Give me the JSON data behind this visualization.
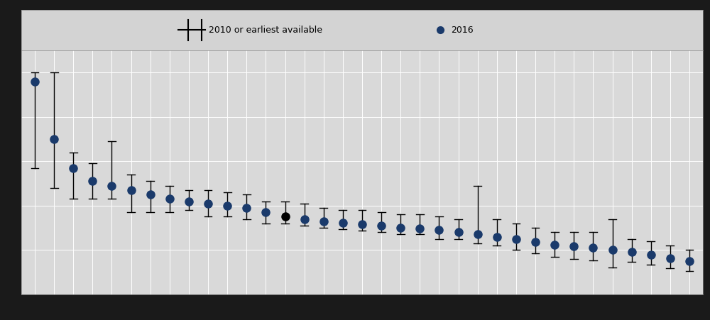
{
  "dot_2016": [
    0.48,
    0.35,
    0.285,
    0.255,
    0.245,
    0.235,
    0.225,
    0.215,
    0.21,
    0.205,
    0.2,
    0.195,
    0.185,
    0.175,
    0.17,
    0.165,
    0.162,
    0.158,
    0.155,
    0.15,
    0.148,
    0.145,
    0.14,
    0.135,
    0.13,
    0.125,
    0.118,
    0.112,
    0.108,
    0.105,
    0.1,
    0.095,
    0.09,
    0.082,
    0.075
  ],
  "bar_top": [
    0.5,
    0.5,
    0.32,
    0.295,
    0.345,
    0.27,
    0.255,
    0.245,
    0.235,
    0.235,
    0.23,
    0.225,
    0.21,
    0.21,
    0.205,
    0.195,
    0.19,
    0.19,
    0.185,
    0.18,
    0.18,
    0.175,
    0.17,
    0.245,
    0.17,
    0.16,
    0.15,
    0.14,
    0.14,
    0.14,
    0.17,
    0.125,
    0.12,
    0.11,
    0.1
  ],
  "bar_bottom": [
    0.285,
    0.24,
    0.215,
    0.215,
    0.215,
    0.185,
    0.185,
    0.185,
    0.19,
    0.175,
    0.175,
    0.17,
    0.16,
    0.16,
    0.155,
    0.15,
    0.147,
    0.143,
    0.14,
    0.135,
    0.135,
    0.125,
    0.125,
    0.115,
    0.11,
    0.1,
    0.093,
    0.085,
    0.08,
    0.077,
    0.06,
    0.073,
    0.067,
    0.059,
    0.053
  ],
  "special_dot_index": 13,
  "dot_color": "#1a3a6b",
  "bar_color": "#000000",
  "fig_bg": "#c8c8c8",
  "plot_bg": "#d9d9d9",
  "legend_bg": "#d3d3d3",
  "ylim_min": 0.0,
  "ylim_max": 0.55,
  "legend_line_label": "2010 or earliest available",
  "legend_dot_label": "2016",
  "n_countries": 35,
  "legend_top_strip_color": "#4d4d4d",
  "border_color": "#2a2a2a"
}
